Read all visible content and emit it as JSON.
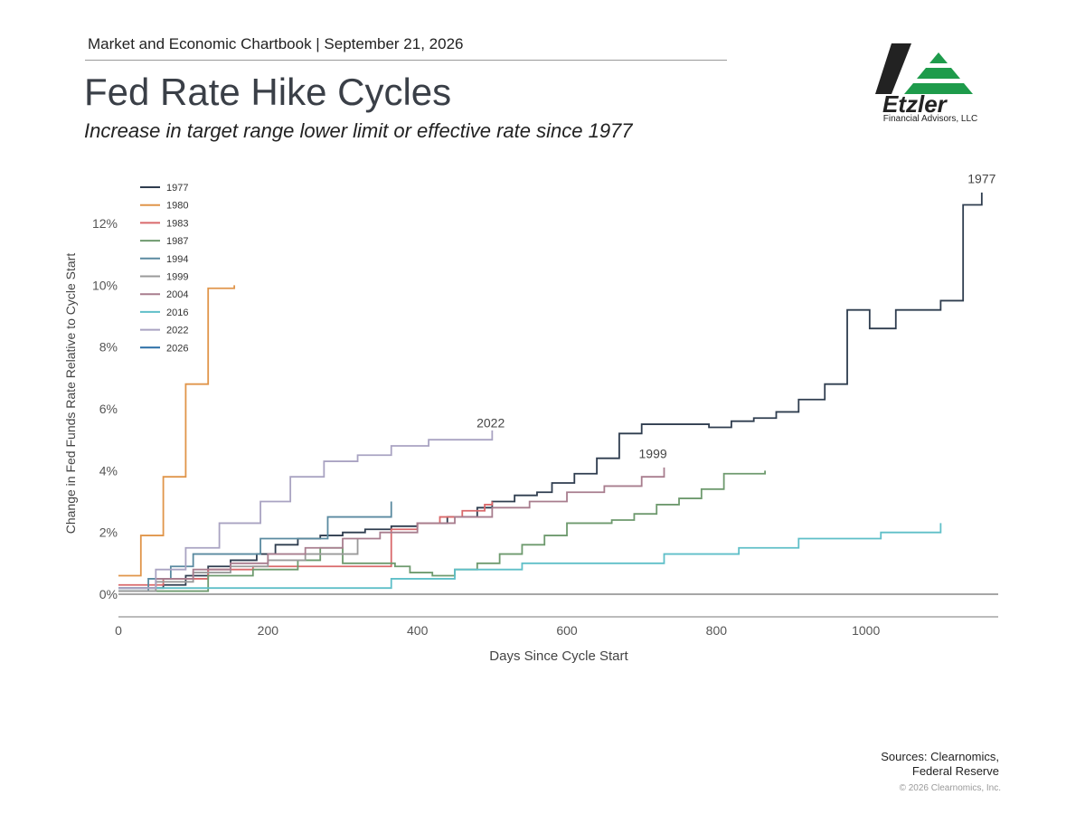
{
  "header": {
    "chartbook_line": "Market and Economic Chartbook | September 21, 2026",
    "title": "Fed Rate Hike Cycles",
    "subtitle": "Increase in target range lower limit or effective rate since 1977"
  },
  "logo": {
    "name": "Etzler",
    "subtitle": "Financial Advisors, LLC",
    "colors": {
      "dark": "#222222",
      "green": "#1e9b4b"
    }
  },
  "footer": {
    "sources_line1": "Sources: Clearnomics,",
    "sources_line2": "Federal Reserve",
    "copyright": "© 2026 Clearnomics, Inc."
  },
  "chart_data": {
    "type": "line",
    "step": true,
    "xlabel": "Days Since Cycle Start",
    "ylabel": "Change in Fed Funds Rate Relative to Cycle Start",
    "xlim": [
      0,
      1180
    ],
    "ylim": [
      -0.8,
      13.5
    ],
    "x_ticks": [
      0,
      200,
      400,
      600,
      800,
      1000
    ],
    "x_tick_labels": [
      "0",
      "200",
      "400",
      "600",
      "800",
      "1000"
    ],
    "y_ticks": [
      0,
      2,
      4,
      6,
      8,
      10,
      12
    ],
    "y_tick_labels": [
      "0%",
      "2%",
      "4%",
      "6%",
      "8%",
      "10%",
      "12%"
    ],
    "grid": false,
    "legend": "top-left",
    "annotations": [
      {
        "text": "1977",
        "x": 1155,
        "y": 13.3
      },
      {
        "text": "2022",
        "x": 498,
        "y": 5.4
      },
      {
        "text": "1999",
        "x": 715,
        "y": 4.4
      }
    ],
    "series": [
      {
        "name": "1977",
        "color": "#2f3d4f",
        "x": [
          0,
          60,
          90,
          120,
          150,
          185,
          210,
          240,
          270,
          300,
          330,
          365,
          400,
          440,
          480,
          500,
          530,
          560,
          580,
          610,
          640,
          670,
          700,
          760,
          790,
          820,
          850,
          880,
          910,
          945,
          975,
          1005,
          1040,
          1070,
          1100,
          1130,
          1155
        ],
        "y": [
          0.2,
          0.3,
          0.6,
          0.9,
          1.1,
          1.3,
          1.6,
          1.8,
          1.9,
          2.0,
          2.1,
          2.2,
          2.3,
          2.5,
          2.8,
          3.0,
          3.2,
          3.3,
          3.6,
          3.9,
          4.4,
          5.2,
          5.5,
          5.5,
          5.4,
          5.6,
          5.7,
          5.9,
          6.3,
          6.8,
          9.2,
          8.6,
          9.2,
          9.2,
          9.5,
          12.6,
          13.0
        ]
      },
      {
        "name": "1980",
        "color": "#e0954a",
        "x": [
          0,
          30,
          60,
          90,
          120,
          155
        ],
        "y": [
          0.6,
          1.9,
          3.8,
          6.8,
          9.9,
          10.0
        ]
      },
      {
        "name": "1983",
        "color": "#d9696b",
        "x": [
          0,
          60,
          120,
          180,
          240,
          300,
          365,
          400,
          430,
          460,
          490,
          500
        ],
        "y": [
          0.3,
          0.5,
          0.8,
          0.9,
          0.9,
          0.9,
          2.1,
          2.3,
          2.5,
          2.7,
          2.9,
          3.0
        ]
      },
      {
        "name": "1987",
        "color": "#6e9a6e",
        "x": [
          0,
          120,
          180,
          240,
          270,
          300,
          370,
          390,
          420,
          450,
          480,
          510,
          540,
          570,
          600,
          630,
          660,
          690,
          720,
          750,
          780,
          810,
          840,
          865
        ],
        "y": [
          0.1,
          0.6,
          0.8,
          1.1,
          1.5,
          1.0,
          0.9,
          0.7,
          0.6,
          0.8,
          1.0,
          1.3,
          1.6,
          1.9,
          2.3,
          2.3,
          2.4,
          2.6,
          2.9,
          3.1,
          3.4,
          3.9,
          3.9,
          4.0
        ]
      },
      {
        "name": "1994",
        "color": "#5a8aa0",
        "x": [
          0,
          40,
          70,
          100,
          140,
          190,
          230,
          280,
          320,
          360,
          365
        ],
        "y": [
          0.1,
          0.5,
          0.9,
          1.3,
          1.3,
          1.8,
          1.8,
          2.5,
          2.5,
          2.5,
          3.0
        ]
      },
      {
        "name": "1999",
        "color": "#9a9a9a",
        "x": [
          0,
          50,
          100,
          150,
          200,
          250,
          300,
          320
        ],
        "y": [
          0.1,
          0.4,
          0.7,
          0.9,
          1.1,
          1.3,
          1.3,
          1.8
        ]
      },
      {
        "name": "2004",
        "color": "#a87d8e",
        "x": [
          0,
          50,
          100,
          150,
          200,
          250,
          300,
          350,
          400,
          450,
          500,
          550,
          600,
          650,
          700,
          730
        ],
        "y": [
          0.2,
          0.5,
          0.8,
          1.0,
          1.3,
          1.5,
          1.8,
          2.0,
          2.3,
          2.5,
          2.8,
          3.0,
          3.3,
          3.5,
          3.8,
          4.1
        ]
      },
      {
        "name": "2016",
        "color": "#5fbfc8",
        "x": [
          0,
          365,
          450,
          540,
          600,
          730,
          830,
          910,
          1020,
          1100
        ],
        "y": [
          0.2,
          0.5,
          0.8,
          1.0,
          1.0,
          1.3,
          1.5,
          1.8,
          2.0,
          2.3
        ]
      },
      {
        "name": "2022",
        "color": "#a9a3c2",
        "x": [
          0,
          50,
          90,
          135,
          190,
          230,
          275,
          320,
          365,
          415,
          460,
          500
        ],
        "y": [
          0.2,
          0.8,
          1.5,
          2.3,
          3.0,
          3.8,
          4.3,
          4.5,
          4.8,
          5.0,
          5.0,
          5.3
        ]
      },
      {
        "name": "2026",
        "color": "#2a6ea6",
        "x": [
          0
        ],
        "y": [
          0
        ]
      }
    ]
  }
}
